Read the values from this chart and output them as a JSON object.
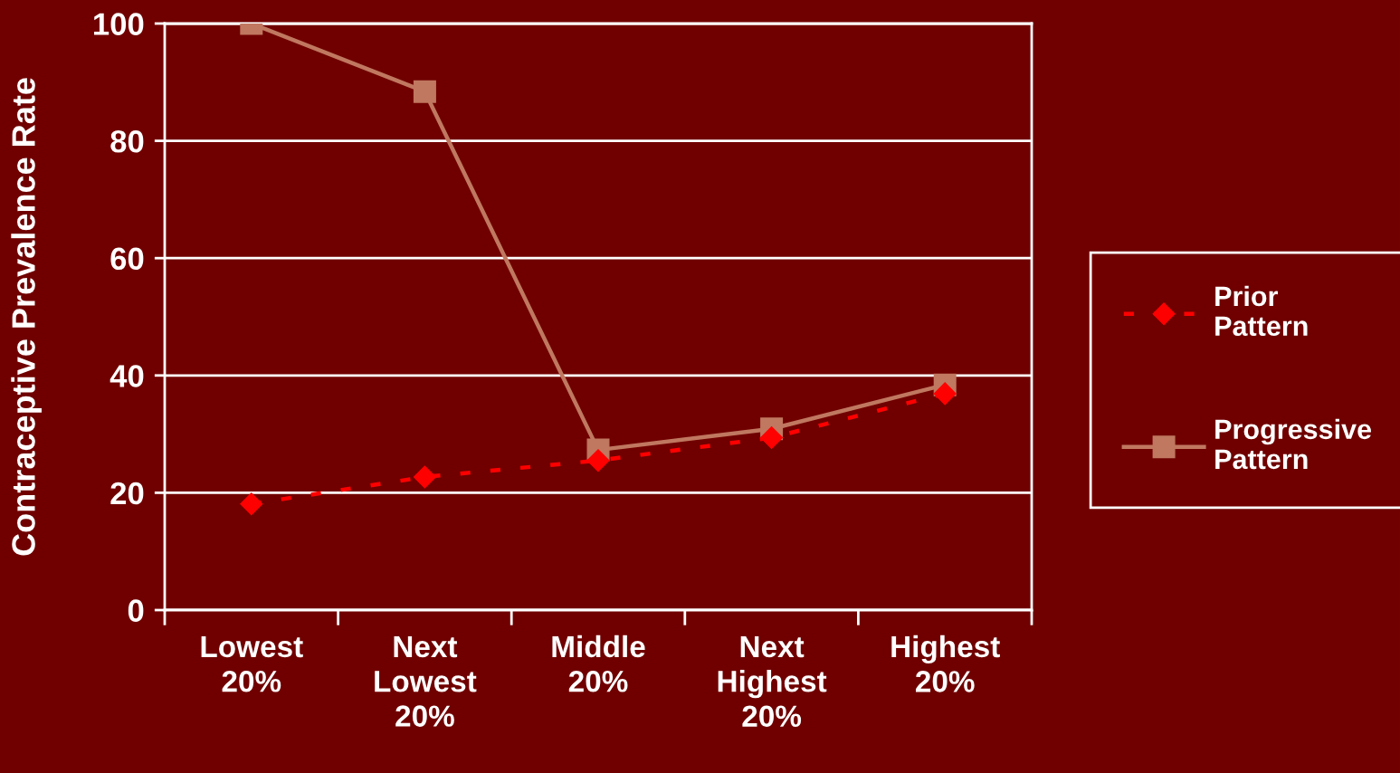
{
  "chart_data": {
    "type": "line",
    "ylabel": "Contraceptive Prevalence Rate",
    "categories": [
      "Lowest 20%",
      "Next Lowest 20%",
      "Middle 20%",
      "Next Highest 20%",
      "Highest 20%"
    ],
    "series": [
      {
        "name": "Prior Pattern",
        "color": "#ff0000",
        "marker": "diamond",
        "line_style": "dashed",
        "values": [
          18.1,
          22.7,
          25.5,
          29.4,
          36.9
        ]
      },
      {
        "name": "Progressive Pattern",
        "color": "#c07860",
        "marker": "square",
        "line_style": "solid",
        "values": [
          100,
          88.4,
          27.3,
          30.9,
          38.4
        ]
      }
    ],
    "ylim": [
      0,
      100
    ],
    "yticks": [
      0,
      20,
      40,
      60,
      80,
      100
    ],
    "grid": "y",
    "legend": "right"
  }
}
